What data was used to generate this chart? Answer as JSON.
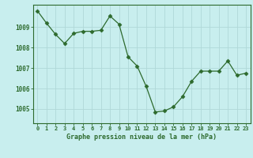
{
  "x": [
    0,
    1,
    2,
    3,
    4,
    5,
    6,
    7,
    8,
    9,
    10,
    11,
    12,
    13,
    14,
    15,
    16,
    17,
    18,
    19,
    20,
    21,
    22,
    23
  ],
  "y": [
    1009.8,
    1009.2,
    1008.65,
    1008.2,
    1008.7,
    1008.8,
    1008.8,
    1008.85,
    1009.55,
    1009.15,
    1007.55,
    1007.1,
    1006.1,
    1004.85,
    1004.9,
    1005.1,
    1005.6,
    1006.35,
    1006.85,
    1006.85,
    1006.85,
    1007.35,
    1006.65,
    1006.75
  ],
  "line_color": "#2d6a2d",
  "marker": "D",
  "marker_size": 2.5,
  "bg_color": "#c8eeee",
  "grid_color": "#b0d8d8",
  "xlabel": "Graphe pression niveau de la mer (hPa)",
  "xlabel_color": "#2d6a2d",
  "tick_color": "#2d6a2d",
  "ylabel_ticks": [
    1005,
    1006,
    1007,
    1008,
    1009
  ],
  "ylim": [
    1004.3,
    1010.1
  ],
  "xlim": [
    -0.5,
    23.5
  ]
}
